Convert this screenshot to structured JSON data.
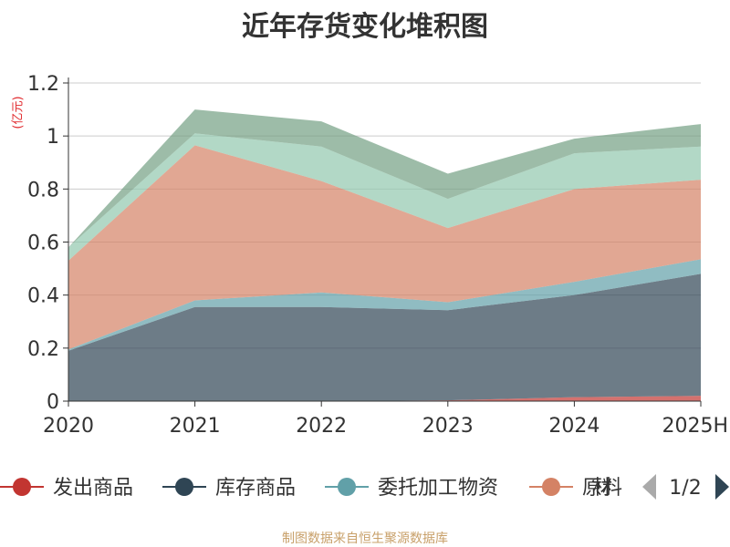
{
  "title": "近年存货变化堆积图",
  "source": "制图数据来自恒生聚源数据库",
  "pager": "1/2",
  "chart_data": {
    "type": "area",
    "stacked": true,
    "unit": "(亿元)",
    "categories": [
      "2020",
      "2021",
      "2022",
      "2023",
      "2024",
      "2025H"
    ],
    "ylim": [
      0,
      1.2
    ],
    "yticks": [
      0,
      0.2,
      0.4,
      0.6,
      0.8,
      1,
      1.2
    ],
    "grid": true,
    "legend_position": "bottom",
    "series": [
      {
        "name": "发出商品",
        "color": "#c23531",
        "values": [
          0.0,
          0.0,
          0.0,
          0.003,
          0.015,
          0.02
        ]
      },
      {
        "name": "库存商品",
        "color": "#2f4554",
        "values": [
          0.19,
          0.355,
          0.355,
          0.34,
          0.385,
          0.46
        ]
      },
      {
        "name": "委托加工物资",
        "color": "#61a0a8",
        "values": [
          0.005,
          0.025,
          0.055,
          0.03,
          0.05,
          0.055
        ]
      },
      {
        "name": "原材料",
        "color": "#d48265",
        "values": [
          0.335,
          0.585,
          0.42,
          0.28,
          0.35,
          0.3
        ]
      },
      {
        "name": "",
        "color": "#91c7ae",
        "values": [
          0.05,
          0.045,
          0.13,
          0.11,
          0.135,
          0.125
        ]
      },
      {
        "name": "",
        "color": "#749f83",
        "values": [
          0.0,
          0.09,
          0.095,
          0.095,
          0.055,
          0.085
        ]
      }
    ]
  }
}
